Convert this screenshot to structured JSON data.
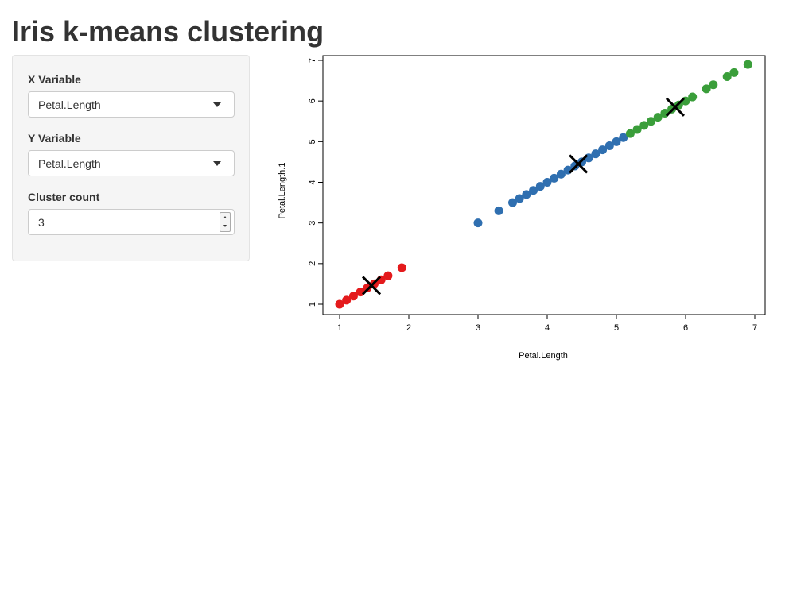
{
  "header": {
    "title": "Iris k-means clustering"
  },
  "sidebar": {
    "x_variable": {
      "label": "X Variable",
      "value": "Petal.Length"
    },
    "y_variable": {
      "label": "Y Variable",
      "value": "Petal.Length"
    },
    "cluster_count": {
      "label": "Cluster count",
      "value": "3"
    }
  },
  "chart_data": {
    "type": "scatter",
    "xlabel": "Petal.Length",
    "ylabel": "Petal.Length.1",
    "xlim": [
      1,
      7
    ],
    "ylim": [
      1,
      7
    ],
    "xticks": [
      "1",
      "2",
      "3",
      "4",
      "5",
      "6",
      "7"
    ],
    "yticks": [
      "1",
      "2",
      "3",
      "4",
      "5",
      "6",
      "7"
    ],
    "colors": {
      "cluster1": "#e41a1c",
      "cluster2": "#377eb8",
      "cluster3": "#4daf4a",
      "center": "#000000"
    },
    "series": [
      {
        "values": [
          1.0,
          1.1,
          1.2,
          1.3,
          1.4,
          1.5,
          1.6,
          1.7,
          1.9
        ],
        "color": "#e41a1c"
      },
      {
        "values": [
          3.0,
          3.3,
          3.5,
          3.6,
          3.7,
          3.8,
          3.9,
          4.0,
          4.1,
          4.2,
          4.3,
          4.4,
          4.5,
          4.6,
          4.7,
          4.8,
          4.9,
          5.0,
          5.1
        ],
        "color": "#2f6fb0"
      },
      {
        "values": [
          5.2,
          5.3,
          5.4,
          5.5,
          5.6,
          5.7,
          5.8,
          5.9,
          6.0,
          6.1,
          6.3,
          6.4,
          6.6,
          6.7,
          6.9
        ],
        "color": "#3a9e3a"
      }
    ],
    "centers": [
      [
        1.46,
        1.46
      ],
      [
        4.45,
        4.45
      ],
      [
        5.85,
        5.85
      ]
    ]
  }
}
